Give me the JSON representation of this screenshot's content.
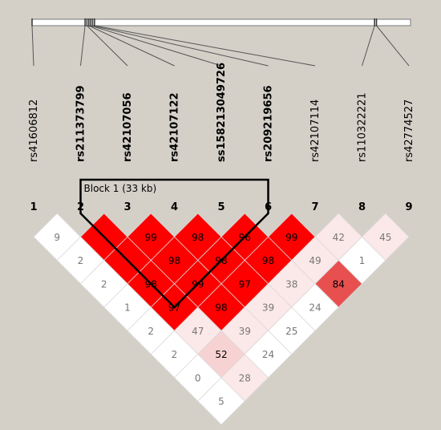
{
  "block": {
    "label": "Block 1 (33 kb)",
    "start": 2,
    "end": 6
  },
  "colors": {
    "background": "#d4d0c8",
    "strong": "#ff0000",
    "medium": "#e85050",
    "weak": "#f7d2d2",
    "faint": "#fbe8e8",
    "none": "#ffffff"
  },
  "snps": [
    {
      "index": "1",
      "name": "rs41606812",
      "bold": false
    },
    {
      "index": "2",
      "name": "rs211373799",
      "bold": true
    },
    {
      "index": "3",
      "name": "rs42107056",
      "bold": true
    },
    {
      "index": "4",
      "name": "rs42107122",
      "bold": true
    },
    {
      "index": "5",
      "name": "ss158213049726",
      "bold": true
    },
    {
      "index": "6",
      "name": "rs209219656",
      "bold": true
    },
    {
      "index": "7",
      "name": "rs42107114",
      "bold": false
    },
    {
      "index": "8",
      "name": "rs110322221",
      "bold": false
    },
    {
      "index": "9",
      "name": "rs42774527",
      "bold": false
    }
  ],
  "physical_positions": [
    0.0,
    0.14,
    0.145,
    0.15,
    0.155,
    0.16,
    0.165,
    0.905,
    0.91
  ],
  "ld_cells": [
    {
      "i": 1,
      "j": 2,
      "value": "9",
      "shade": "none"
    },
    {
      "i": 2,
      "j": 3,
      "value": "",
      "shade": "strong"
    },
    {
      "i": 3,
      "j": 4,
      "value": "99",
      "shade": "strong"
    },
    {
      "i": 4,
      "j": 5,
      "value": "98",
      "shade": "strong"
    },
    {
      "i": 5,
      "j": 6,
      "value": "96",
      "shade": "strong"
    },
    {
      "i": 6,
      "j": 7,
      "value": "99",
      "shade": "strong"
    },
    {
      "i": 7,
      "j": 8,
      "value": "42",
      "shade": "faint"
    },
    {
      "i": 8,
      "j": 9,
      "value": "45",
      "shade": "faint"
    },
    {
      "i": 1,
      "j": 3,
      "value": "2",
      "shade": "none"
    },
    {
      "i": 2,
      "j": 4,
      "value": "",
      "shade": "strong"
    },
    {
      "i": 3,
      "j": 5,
      "value": "98",
      "shade": "strong"
    },
    {
      "i": 4,
      "j": 6,
      "value": "98",
      "shade": "strong"
    },
    {
      "i": 5,
      "j": 7,
      "value": "98",
      "shade": "strong"
    },
    {
      "i": 6,
      "j": 8,
      "value": "49",
      "shade": "faint"
    },
    {
      "i": 7,
      "j": 9,
      "value": "1",
      "shade": "none"
    },
    {
      "i": 1,
      "j": 4,
      "value": "2",
      "shade": "none"
    },
    {
      "i": 2,
      "j": 5,
      "value": "98",
      "shade": "strong"
    },
    {
      "i": 3,
      "j": 6,
      "value": "99",
      "shade": "strong"
    },
    {
      "i": 4,
      "j": 7,
      "value": "97",
      "shade": "strong"
    },
    {
      "i": 5,
      "j": 8,
      "value": "38",
      "shade": "faint"
    },
    {
      "i": 6,
      "j": 9,
      "value": "84",
      "shade": "medium"
    },
    {
      "i": 1,
      "j": 5,
      "value": "1",
      "shade": "none"
    },
    {
      "i": 2,
      "j": 6,
      "value": "97",
      "shade": "strong"
    },
    {
      "i": 3,
      "j": 7,
      "value": "98",
      "shade": "strong"
    },
    {
      "i": 4,
      "j": 8,
      "value": "39",
      "shade": "faint"
    },
    {
      "i": 5,
      "j": 9,
      "value": "24",
      "shade": "none"
    },
    {
      "i": 1,
      "j": 6,
      "value": "2",
      "shade": "none"
    },
    {
      "i": 2,
      "j": 7,
      "value": "47",
      "shade": "faint"
    },
    {
      "i": 3,
      "j": 8,
      "value": "39",
      "shade": "faint"
    },
    {
      "i": 4,
      "j": 9,
      "value": "25",
      "shade": "none"
    },
    {
      "i": 1,
      "j": 7,
      "value": "2",
      "shade": "none"
    },
    {
      "i": 2,
      "j": 8,
      "value": "52",
      "shade": "weak"
    },
    {
      "i": 3,
      "j": 9,
      "value": "24",
      "shade": "none"
    },
    {
      "i": 1,
      "j": 8,
      "value": "0",
      "shade": "none"
    },
    {
      "i": 2,
      "j": 9,
      "value": "28",
      "shade": "faint"
    },
    {
      "i": 1,
      "j": 9,
      "value": "5",
      "shade": "none"
    }
  ]
}
